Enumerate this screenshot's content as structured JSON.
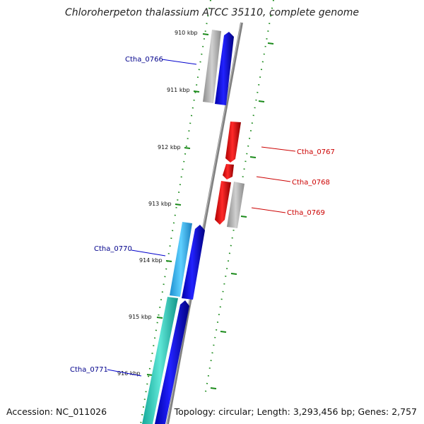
{
  "title": "Chloroherpeton thalassium ATCC 35110, complete genome",
  "footer": {
    "accession": "Accession: NC_011026",
    "summary": "Topology: circular; Length: 3,293,456 bp; Genes: 2,757"
  },
  "colors": {
    "backbone": "#7f7f7f",
    "tick": "#1a8a1a",
    "forward_label": "#00008b",
    "reverse_label": "#cc0000",
    "blue_gene": "#0000ee",
    "red_gene": "#ee0000",
    "grey_feature": "#a9a9a9",
    "cyan_feature": "#29b6e8",
    "teal_feature": "#1fbfb0"
  },
  "scale_ticks": [
    {
      "label": "910 kbp",
      "kbp": 910
    },
    {
      "label": "911 kbp",
      "kbp": 911
    },
    {
      "label": "912 kbp",
      "kbp": 912
    },
    {
      "label": "913 kbp",
      "kbp": 913
    },
    {
      "label": "914 kbp",
      "kbp": 914
    },
    {
      "label": "915 kbp",
      "kbp": 915
    },
    {
      "label": "916 kbp",
      "kbp": 916
    }
  ],
  "genes": [
    {
      "label": "Ctha_0766",
      "strand": "forward",
      "start_kbp": 910.05,
      "end_kbp": 911.3
    },
    {
      "label": "Ctha_0767",
      "strand": "reverse",
      "start_kbp": 911.75,
      "end_kbp": 912.5
    },
    {
      "label": "Ctha_0768",
      "strand": "reverse",
      "start_kbp": 912.5,
      "end_kbp": 912.8
    },
    {
      "label": "Ctha_0769",
      "strand": "reverse",
      "start_kbp": 912.8,
      "end_kbp": 913.6
    },
    {
      "label": "Ctha_0770",
      "strand": "forward",
      "start_kbp": 913.4,
      "end_kbp": 914.75
    },
    {
      "label": "Ctha_0771",
      "strand": "forward",
      "start_kbp": 914.8,
      "end_kbp": 916.9
    }
  ]
}
